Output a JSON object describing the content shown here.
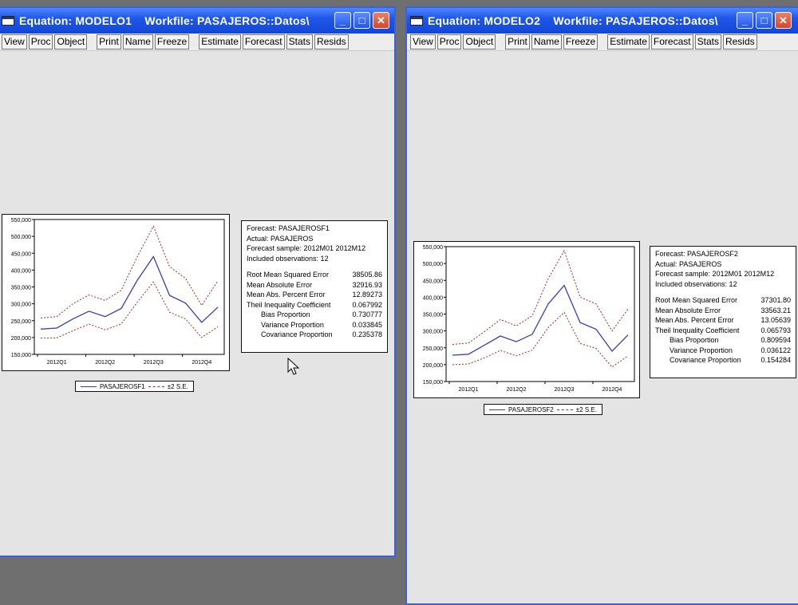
{
  "windows": [
    {
      "title": "Equation: MODELO1    Workfile: PASAJEROS::Datos\\",
      "toolbar": [
        "View",
        "Proc",
        "Object",
        "Print",
        "Name",
        "Freeze",
        "Estimate",
        "Forecast",
        "Stats",
        "Resids"
      ],
      "chart_data": {
        "type": "line",
        "categories": [
          "2012M01",
          "2012M02",
          "2012M03",
          "2012M04",
          "2012M05",
          "2012M06",
          "2012M07",
          "2012M08",
          "2012M09",
          "2012M10",
          "2012M11",
          "2012M12"
        ],
        "x_tick_labels": [
          "2012Q1",
          "2012Q2",
          "2012Q3",
          "2012Q4"
        ],
        "y_tick_labels": [
          "150,000",
          "200,000",
          "250,000",
          "300,000",
          "350,000",
          "400,000",
          "450,000",
          "500,000",
          "550,000"
        ],
        "ylim": [
          150000,
          550000
        ],
        "series": [
          {
            "name": "PASAJEROSF1",
            "style": "solid",
            "color": "#3a3ad0",
            "values": [
              225000,
              228000,
              255000,
              278000,
              262000,
              286000,
              370000,
              440000,
              325000,
              302000,
              245000,
              290000
            ]
          },
          {
            "name": "±2 S.E.",
            "style": "dashed",
            "color": "#c02020",
            "values": [
              258000,
              262000,
              300000,
              326000,
              310000,
              340000,
              440000,
              530000,
              410000,
              375000,
              295000,
              368000
            ]
          },
          {
            "name": "",
            "style": "dashed",
            "color": "#c02020",
            "values": [
              198000,
              199000,
              220000,
              240000,
              223000,
              240000,
              305000,
              365000,
              275000,
              255000,
              200000,
              232000
            ]
          }
        ]
      },
      "legend": {
        "forecast": "PASAJEROSF1",
        "se": "±2 S.E."
      },
      "stats": {
        "header": [
          "Forecast: PASAJEROSF1",
          "Actual: PASAJEROS",
          "Forecast sample: 2012M01 2012M12",
          "Included observations: 12"
        ],
        "rows": [
          {
            "label": "Root Mean Squared Error",
            "value": "38505.86",
            "indent": false
          },
          {
            "label": "Mean Absolute Error",
            "value": "32916.93",
            "indent": false
          },
          {
            "label": "Mean Abs. Percent Error",
            "value": "12.89273",
            "indent": false
          },
          {
            "label": "Theil Inequality Coefficient",
            "value": "0.067992",
            "indent": false
          },
          {
            "label": "Bias Proportion",
            "value": "0.730777",
            "indent": true
          },
          {
            "label": "Variance Proportion",
            "value": "0.033845",
            "indent": true
          },
          {
            "label": "Covariance Proportion",
            "value": "0.235378",
            "indent": true
          }
        ]
      }
    },
    {
      "title": "Equation: MODELO2    Workfile: PASAJEROS::Datos\\",
      "toolbar": [
        "View",
        "Proc",
        "Object",
        "Print",
        "Name",
        "Freeze",
        "Estimate",
        "Forecast",
        "Stats",
        "Resids"
      ],
      "chart_data": {
        "type": "line",
        "categories": [
          "2012M01",
          "2012M02",
          "2012M03",
          "2012M04",
          "2012M05",
          "2012M06",
          "2012M07",
          "2012M08",
          "2012M09",
          "2012M10",
          "2012M11",
          "2012M12"
        ],
        "x_tick_labels": [
          "2012Q1",
          "2012Q2",
          "2012Q3",
          "2012Q4"
        ],
        "y_tick_labels": [
          "150,000",
          "200,000",
          "250,000",
          "300,000",
          "350,000",
          "400,000",
          "450,000",
          "500,000",
          "550,000"
        ],
        "ylim": [
          150000,
          550000
        ],
        "series": [
          {
            "name": "PASAJEROSF2",
            "style": "solid",
            "color": "#3a3ad0",
            "values": [
              228000,
              231000,
              258000,
              285000,
              268000,
              290000,
              380000,
              435000,
              325000,
              305000,
              240000,
              288000
            ]
          },
          {
            "name": "±2 S.E.",
            "style": "dashed",
            "color": "#c02020",
            "values": [
              260000,
              264000,
              298000,
              334000,
              315000,
              345000,
              455000,
              538000,
              400000,
              380000,
              300000,
              365000
            ]
          },
          {
            "name": "",
            "style": "dashed",
            "color": "#c02020",
            "values": [
              200000,
              202000,
              220000,
              242000,
              226000,
              243000,
              310000,
              355000,
              263000,
              248000,
              193000,
              226000
            ]
          }
        ]
      },
      "legend": {
        "forecast": "PASAJEROSF2",
        "se": "±2 S.E."
      },
      "stats": {
        "header": [
          "Forecast: PASAJEROSF2",
          "Actual: PASAJEROS",
          "Forecast sample: 2012M01 2012M12",
          "Included observations: 12"
        ],
        "rows": [
          {
            "label": "Root Mean Squared Error",
            "value": "37301.80",
            "indent": false
          },
          {
            "label": "Mean Absolute Error",
            "value": "33563.21",
            "indent": false
          },
          {
            "label": "Mean Abs. Percent Error",
            "value": "13.05639",
            "indent": false
          },
          {
            "label": "Theil Inequality Coefficient",
            "value": "0.065793",
            "indent": false
          },
          {
            "label": "Bias Proportion",
            "value": "0.809594",
            "indent": true
          },
          {
            "label": "Variance Proportion",
            "value": "0.036122",
            "indent": true
          },
          {
            "label": "Covariance Proportion",
            "value": "0.154284",
            "indent": true
          }
        ]
      }
    }
  ]
}
